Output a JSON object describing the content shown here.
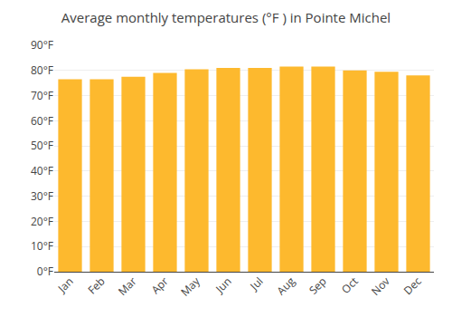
{
  "chart_data": {
    "type": "bar",
    "title": "Average monthly temperatures (°F ) in Pointe Michel",
    "categories": [
      "Jan",
      "Feb",
      "Mar",
      "Apr",
      "May",
      "Jun",
      "Jul",
      "Aug",
      "Sep",
      "Oct",
      "Nov",
      "Dec"
    ],
    "values": [
      76.5,
      76.5,
      77.5,
      79.0,
      80.5,
      81.0,
      81.0,
      81.5,
      81.5,
      80.0,
      79.5,
      78.0
    ],
    "color": "#FDB92E",
    "ylim": [
      0,
      90
    ],
    "yticks": [
      {
        "value": 0,
        "label": "0°F"
      },
      {
        "value": 10,
        "label": "10°F"
      },
      {
        "value": 20,
        "label": "20°F"
      },
      {
        "value": 30,
        "label": "30°F"
      },
      {
        "value": 40,
        "label": "40°F"
      },
      {
        "value": 50,
        "label": "50°F"
      },
      {
        "value": 60,
        "label": "60°F"
      },
      {
        "value": 70,
        "label": "70°F"
      },
      {
        "value": 80,
        "label": "80°F"
      },
      {
        "value": 90,
        "label": "90°F"
      }
    ],
    "grid": true
  }
}
